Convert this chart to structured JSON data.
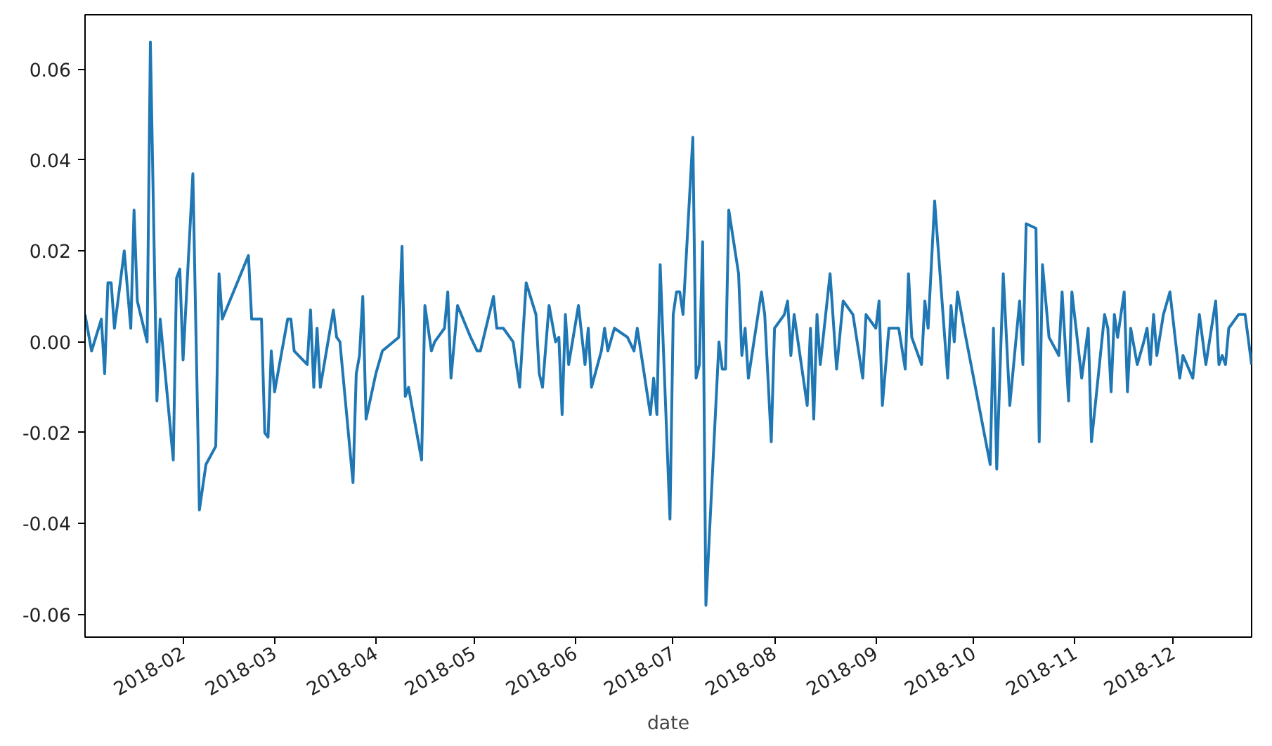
{
  "chart_data": {
    "type": "line",
    "xlabel": "date",
    "grid": false,
    "line_style": "solid",
    "marker": "none",
    "xlim": [
      "2018-01-02",
      "2018-12-25"
    ],
    "xticks": [
      {
        "value": "2018-02-01",
        "label": "2018-02"
      },
      {
        "value": "2018-03-01",
        "label": "2018-03"
      },
      {
        "value": "2018-04-01",
        "label": "2018-04"
      },
      {
        "value": "2018-05-01",
        "label": "2018-05"
      },
      {
        "value": "2018-06-01",
        "label": "2018-06"
      },
      {
        "value": "2018-07-01",
        "label": "2018-07"
      },
      {
        "value": "2018-08-01",
        "label": "2018-08"
      },
      {
        "value": "2018-09-01",
        "label": "2018-09"
      },
      {
        "value": "2018-10-01",
        "label": "2018-10"
      },
      {
        "value": "2018-11-01",
        "label": "2018-11"
      },
      {
        "value": "2018-12-01",
        "label": "2018-12"
      }
    ],
    "ylim": [
      -0.065,
      0.072
    ],
    "yticks": [
      {
        "value": -0.06,
        "label": "-0.06"
      },
      {
        "value": -0.04,
        "label": "-0.04"
      },
      {
        "value": -0.02,
        "label": "-0.02"
      },
      {
        "value": 0,
        "label": "0.00"
      },
      {
        "value": 0.02,
        "label": "0.02"
      },
      {
        "value": 0.04,
        "label": "0.04"
      },
      {
        "value": 0.06,
        "label": "0.06"
      }
    ],
    "x": [
      "2018-01-02",
      "2018-01-04",
      "2018-01-07",
      "2018-01-08",
      "2018-01-09",
      "2018-01-10",
      "2018-01-11",
      "2018-01-14",
      "2018-01-16",
      "2018-01-17",
      "2018-01-18",
      "2018-01-21",
      "2018-01-22",
      "2018-01-24",
      "2018-01-25",
      "2018-01-29",
      "2018-01-30",
      "2018-01-31",
      "2018-02-01",
      "2018-02-04",
      "2018-02-06",
      "2018-02-08",
      "2018-02-11",
      "2018-02-12",
      "2018-02-13",
      "2018-02-21",
      "2018-02-22",
      "2018-02-25",
      "2018-02-26",
      "2018-02-27",
      "2018-02-28",
      "2018-03-01",
      "2018-03-05",
      "2018-03-06",
      "2018-03-07",
      "2018-03-11",
      "2018-03-12",
      "2018-03-13",
      "2018-03-14",
      "2018-03-15",
      "2018-03-19",
      "2018-03-20",
      "2018-03-21",
      "2018-03-25",
      "2018-03-26",
      "2018-03-27",
      "2018-03-28",
      "2018-03-29",
      "2018-04-01",
      "2018-04-03",
      "2018-04-08",
      "2018-04-09",
      "2018-04-10",
      "2018-04-11",
      "2018-04-15",
      "2018-04-16",
      "2018-04-18",
      "2018-04-19",
      "2018-04-22",
      "2018-04-23",
      "2018-04-24",
      "2018-04-26",
      "2018-04-30",
      "2018-05-02",
      "2018-05-03",
      "2018-05-07",
      "2018-05-08",
      "2018-05-10",
      "2018-05-13",
      "2018-05-15",
      "2018-05-17",
      "2018-05-20",
      "2018-05-21",
      "2018-05-22",
      "2018-05-24",
      "2018-05-26",
      "2018-05-27",
      "2018-05-28",
      "2018-05-29",
      "2018-05-30",
      "2018-06-02",
      "2018-06-04",
      "2018-06-05",
      "2018-06-06",
      "2018-06-09",
      "2018-06-10",
      "2018-06-11",
      "2018-06-13",
      "2018-06-17",
      "2018-06-19",
      "2018-06-20",
      "2018-06-24",
      "2018-06-25",
      "2018-06-26",
      "2018-06-27",
      "2018-06-30",
      "2018-07-01",
      "2018-07-02",
      "2018-07-03",
      "2018-07-04",
      "2018-07-07",
      "2018-07-08",
      "2018-07-09",
      "2018-07-10",
      "2018-07-11",
      "2018-07-15",
      "2018-07-16",
      "2018-07-17",
      "2018-07-18",
      "2018-07-21",
      "2018-07-22",
      "2018-07-23",
      "2018-07-24",
      "2018-07-28",
      "2018-07-29",
      "2018-07-31",
      "2018-08-01",
      "2018-08-04",
      "2018-08-05",
      "2018-08-06",
      "2018-08-07",
      "2018-08-11",
      "2018-08-12",
      "2018-08-13",
      "2018-08-14",
      "2018-08-15",
      "2018-08-18",
      "2018-08-20",
      "2018-08-22",
      "2018-08-25",
      "2018-08-28",
      "2018-08-29",
      "2018-09-01",
      "2018-09-02",
      "2018-09-03",
      "2018-09-05",
      "2018-09-08",
      "2018-09-10",
      "2018-09-11",
      "2018-09-12",
      "2018-09-15",
      "2018-09-16",
      "2018-09-17",
      "2018-09-19",
      "2018-09-23",
      "2018-09-24",
      "2018-09-25",
      "2018-09-26",
      "2018-09-28",
      "2018-10-06",
      "2018-10-07",
      "2018-10-08",
      "2018-10-10",
      "2018-10-12",
      "2018-10-15",
      "2018-10-16",
      "2018-10-17",
      "2018-10-20",
      "2018-10-21",
      "2018-10-22",
      "2018-10-24",
      "2018-10-27",
      "2018-10-28",
      "2018-10-30",
      "2018-10-31",
      "2018-11-03",
      "2018-11-05",
      "2018-11-06",
      "2018-11-10",
      "2018-11-11",
      "2018-11-12",
      "2018-11-13",
      "2018-11-14",
      "2018-11-16",
      "2018-11-17",
      "2018-11-18",
      "2018-11-20",
      "2018-11-22",
      "2018-11-23",
      "2018-11-24",
      "2018-11-25",
      "2018-11-26",
      "2018-11-28",
      "2018-11-30",
      "2018-12-03",
      "2018-12-04",
      "2018-12-07",
      "2018-12-09",
      "2018-12-11",
      "2018-12-14",
      "2018-12-15",
      "2018-12-16",
      "2018-12-17",
      "2018-12-18",
      "2018-12-21",
      "2018-12-23",
      "2018-12-25"
    ],
    "series": [
      {
        "color": "#1f77b4",
        "values": [
          0.006,
          -0.002,
          0.005,
          -0.007,
          0.013,
          0.013,
          0.003,
          0.02,
          0.003,
          0.029,
          0.009,
          0.0,
          0.066,
          -0.013,
          0.005,
          -0.026,
          0.014,
          0.016,
          -0.004,
          0.037,
          -0.037,
          -0.027,
          -0.023,
          0.015,
          0.005,
          0.019,
          0.005,
          0.005,
          -0.02,
          -0.021,
          -0.002,
          -0.011,
          0.005,
          0.005,
          -0.002,
          -0.005,
          0.007,
          -0.01,
          0.003,
          -0.01,
          0.007,
          0.001,
          0.0,
          -0.031,
          -0.007,
          -0.003,
          0.01,
          -0.017,
          -0.007,
          -0.002,
          0.001,
          0.021,
          -0.012,
          -0.01,
          -0.026,
          0.008,
          -0.002,
          0.0,
          0.003,
          0.011,
          -0.008,
          0.008,
          0.001,
          -0.002,
          -0.002,
          0.01,
          0.003,
          0.003,
          0.0,
          -0.01,
          0.013,
          0.006,
          -0.007,
          -0.01,
          0.008,
          0.0,
          0.001,
          -0.016,
          0.006,
          -0.005,
          0.008,
          -0.005,
          0.003,
          -0.01,
          -0.002,
          0.003,
          -0.002,
          0.003,
          0.001,
          -0.002,
          0.003,
          -0.016,
          -0.008,
          -0.016,
          0.017,
          -0.039,
          0.006,
          0.011,
          0.011,
          0.006,
          0.045,
          -0.008,
          -0.005,
          0.022,
          -0.058,
          0.0,
          -0.006,
          -0.006,
          0.029,
          0.015,
          -0.003,
          0.003,
          -0.008,
          0.011,
          0.006,
          -0.022,
          0.003,
          0.006,
          0.009,
          -0.003,
          0.006,
          -0.014,
          0.003,
          -0.017,
          0.006,
          -0.005,
          0.015,
          -0.006,
          0.009,
          0.006,
          -0.008,
          0.006,
          0.003,
          0.009,
          -0.014,
          0.003,
          0.003,
          -0.006,
          0.015,
          0.001,
          -0.005,
          0.009,
          0.003,
          0.031,
          -0.008,
          0.008,
          0.0,
          0.011,
          0.003,
          -0.027,
          0.003,
          -0.028,
          0.015,
          -0.014,
          0.009,
          -0.005,
          0.026,
          0.025,
          -0.022,
          0.017,
          0.001,
          -0.003,
          0.011,
          -0.013,
          0.011,
          -0.008,
          0.003,
          -0.022,
          0.006,
          0.003,
          -0.011,
          0.006,
          0.001,
          0.011,
          -0.011,
          0.003,
          -0.005,
          0.0,
          0.003,
          -0.005,
          0.006,
          -0.003,
          0.006,
          0.011,
          -0.008,
          -0.003,
          -0.008,
          0.006,
          -0.005,
          0.009,
          -0.005,
          -0.003,
          -0.005,
          0.003,
          0.006,
          0.006,
          -0.005
        ]
      }
    ]
  }
}
